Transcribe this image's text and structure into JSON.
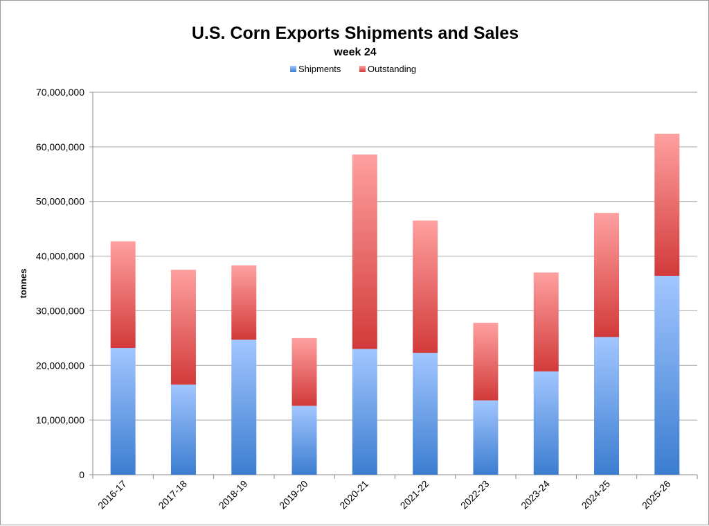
{
  "chart_data": {
    "type": "bar",
    "stacked": true,
    "title": "U.S. Corn Exports Shipments and Sales",
    "subtitle": "week 24",
    "xlabel": "",
    "ylabel": "tonnes",
    "ylim": [
      0,
      70000000
    ],
    "yticks": [
      "0",
      "10,000,000",
      "20,000,000",
      "30,000,000",
      "40,000,000",
      "50,000,000",
      "60,000,000",
      "70,000,000"
    ],
    "grid": true,
    "legend": "top",
    "categories": [
      "2016-17",
      "2017-18",
      "2018-19",
      "2019-20",
      "2020-21",
      "2021-22",
      "2022-23",
      "2023-24",
      "2024-25",
      "2025-26"
    ],
    "series": [
      {
        "name": "Shipments",
        "color": "#4a86d6",
        "values": [
          23200000,
          16500000,
          24700000,
          12600000,
          23000000,
          22300000,
          13600000,
          18900000,
          25200000,
          36400000
        ]
      },
      {
        "name": "Outstanding",
        "color": "#d94848",
        "values": [
          19500000,
          21000000,
          13600000,
          12400000,
          35600000,
          24200000,
          14200000,
          18100000,
          22700000,
          26000000
        ]
      }
    ]
  }
}
